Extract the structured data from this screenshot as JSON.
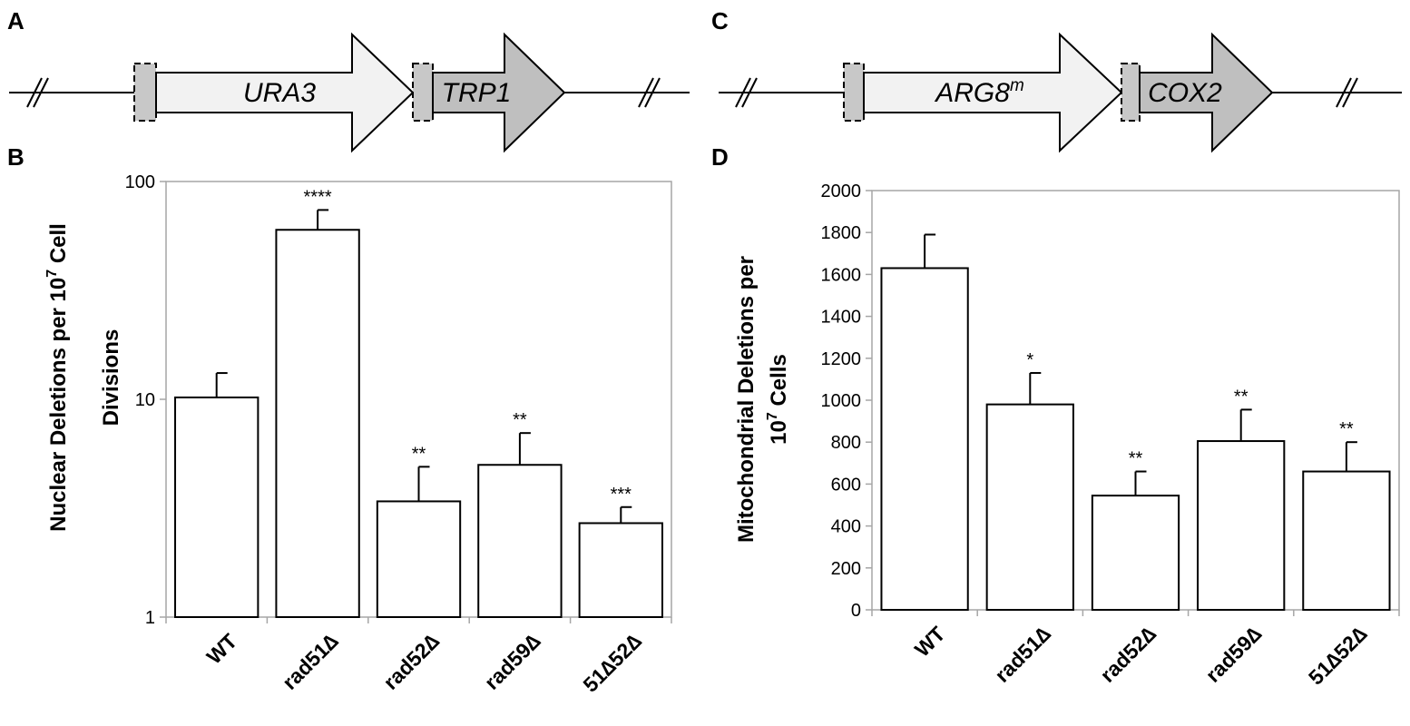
{
  "panels": {
    "A": "A",
    "B": "B",
    "C": "C",
    "D": "D"
  },
  "diagram_a": {
    "gene1": "URA3",
    "gene2": "TRP1"
  },
  "diagram_c": {
    "gene1": "ARG8",
    "gene1_superscript": "m",
    "gene2": "COX2"
  },
  "colors": {
    "gene1_fill": "#f2f2f2",
    "gene2_fill": "#bfbfbf",
    "box_fill": "#c8c8c8",
    "bar_fill": "#ffffff",
    "bar_stroke": "#000000",
    "plot_frame": "#a6a6a6"
  },
  "chart_data": [
    {
      "type": "bar",
      "panel": "B",
      "categories": [
        "WT",
        "rad51∆",
        "rad52∆",
        "rad59∆",
        "51∆52∆"
      ],
      "values": [
        10.2,
        60,
        3.4,
        5.0,
        2.7
      ],
      "errors": [
        3.0,
        14,
        1.5,
        2.0,
        0.5
      ],
      "significance": [
        "",
        "****",
        "**",
        "**",
        "***"
      ],
      "ylabel_line1": "Nuclear Deletions per 10",
      "ylabel_line1_superscript": "7",
      "ylabel_line1_end": " Cell",
      "ylabel_line2": "Divisions",
      "yscale": "log",
      "ylim": [
        1,
        100
      ],
      "yticks": [
        "1",
        "10",
        "100"
      ],
      "grid": false
    },
    {
      "type": "bar",
      "panel": "D",
      "categories": [
        "WT",
        "rad51∆",
        "rad52∆",
        "rad59∆",
        "51∆52∆"
      ],
      "values": [
        1630,
        980,
        545,
        805,
        660
      ],
      "errors": [
        160,
        150,
        115,
        150,
        140
      ],
      "significance": [
        "",
        "*",
        "**",
        "**",
        "**"
      ],
      "ylabel_line1": "Mitochondrial Deletions per",
      "ylabel_line2": "10",
      "ylabel_line2_superscript": "7",
      "ylabel_line2_end": " Cells",
      "yscale": "linear",
      "ylim": [
        0,
        2000
      ],
      "yticks": [
        "0",
        "200",
        "400",
        "600",
        "800",
        "1000",
        "1200",
        "1400",
        "1600",
        "1800",
        "2000"
      ],
      "grid": false
    }
  ]
}
